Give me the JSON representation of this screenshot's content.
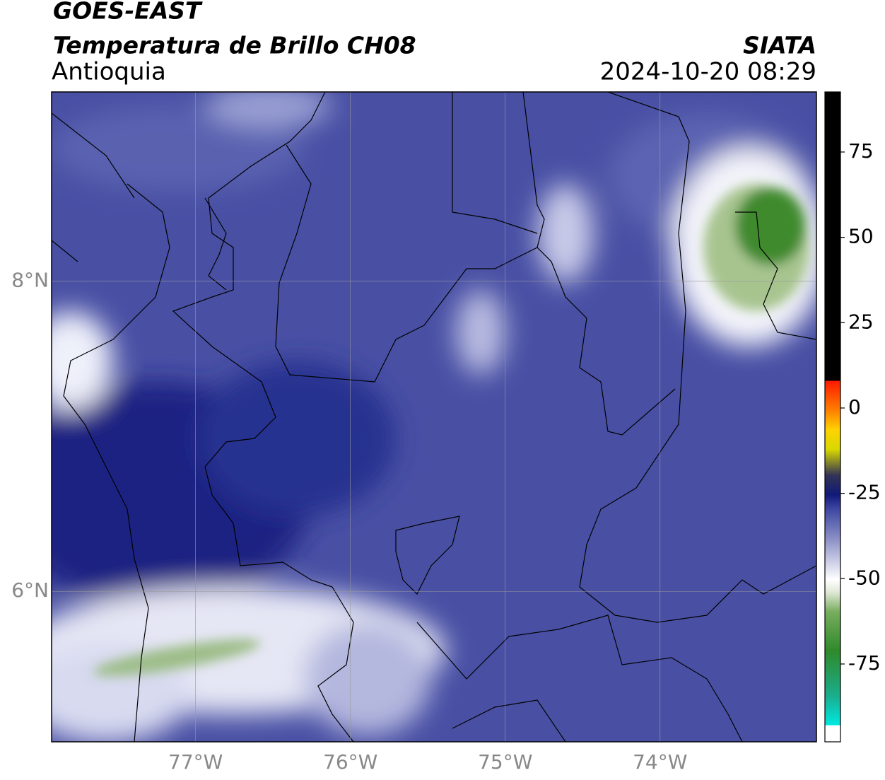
{
  "chart_data": {
    "type": "map",
    "title": "GOES-EAST",
    "subtitle": "Temperatura de Brillo CH08",
    "region": "Antioquia",
    "source": "SIATA",
    "timestamp": "2024-10-20 08:29",
    "xlim": [
      -77.93,
      -72.99
    ],
    "ylim": [
      5.03,
      9.22
    ],
    "xticks": [
      {
        "value": -77,
        "label": "77°W"
      },
      {
        "value": -76,
        "label": "76°W"
      },
      {
        "value": -75,
        "label": "75°W"
      },
      {
        "value": -74,
        "label": "74°W"
      }
    ],
    "yticks": [
      {
        "value": 6,
        "label": "6°N"
      },
      {
        "value": 8,
        "label": "8°N"
      }
    ],
    "grid": true,
    "colorbar": {
      "lim": [
        -97.8,
        92.6
      ],
      "ticks": [
        75,
        50,
        25,
        0,
        -25,
        -50,
        -75
      ]
    }
  }
}
